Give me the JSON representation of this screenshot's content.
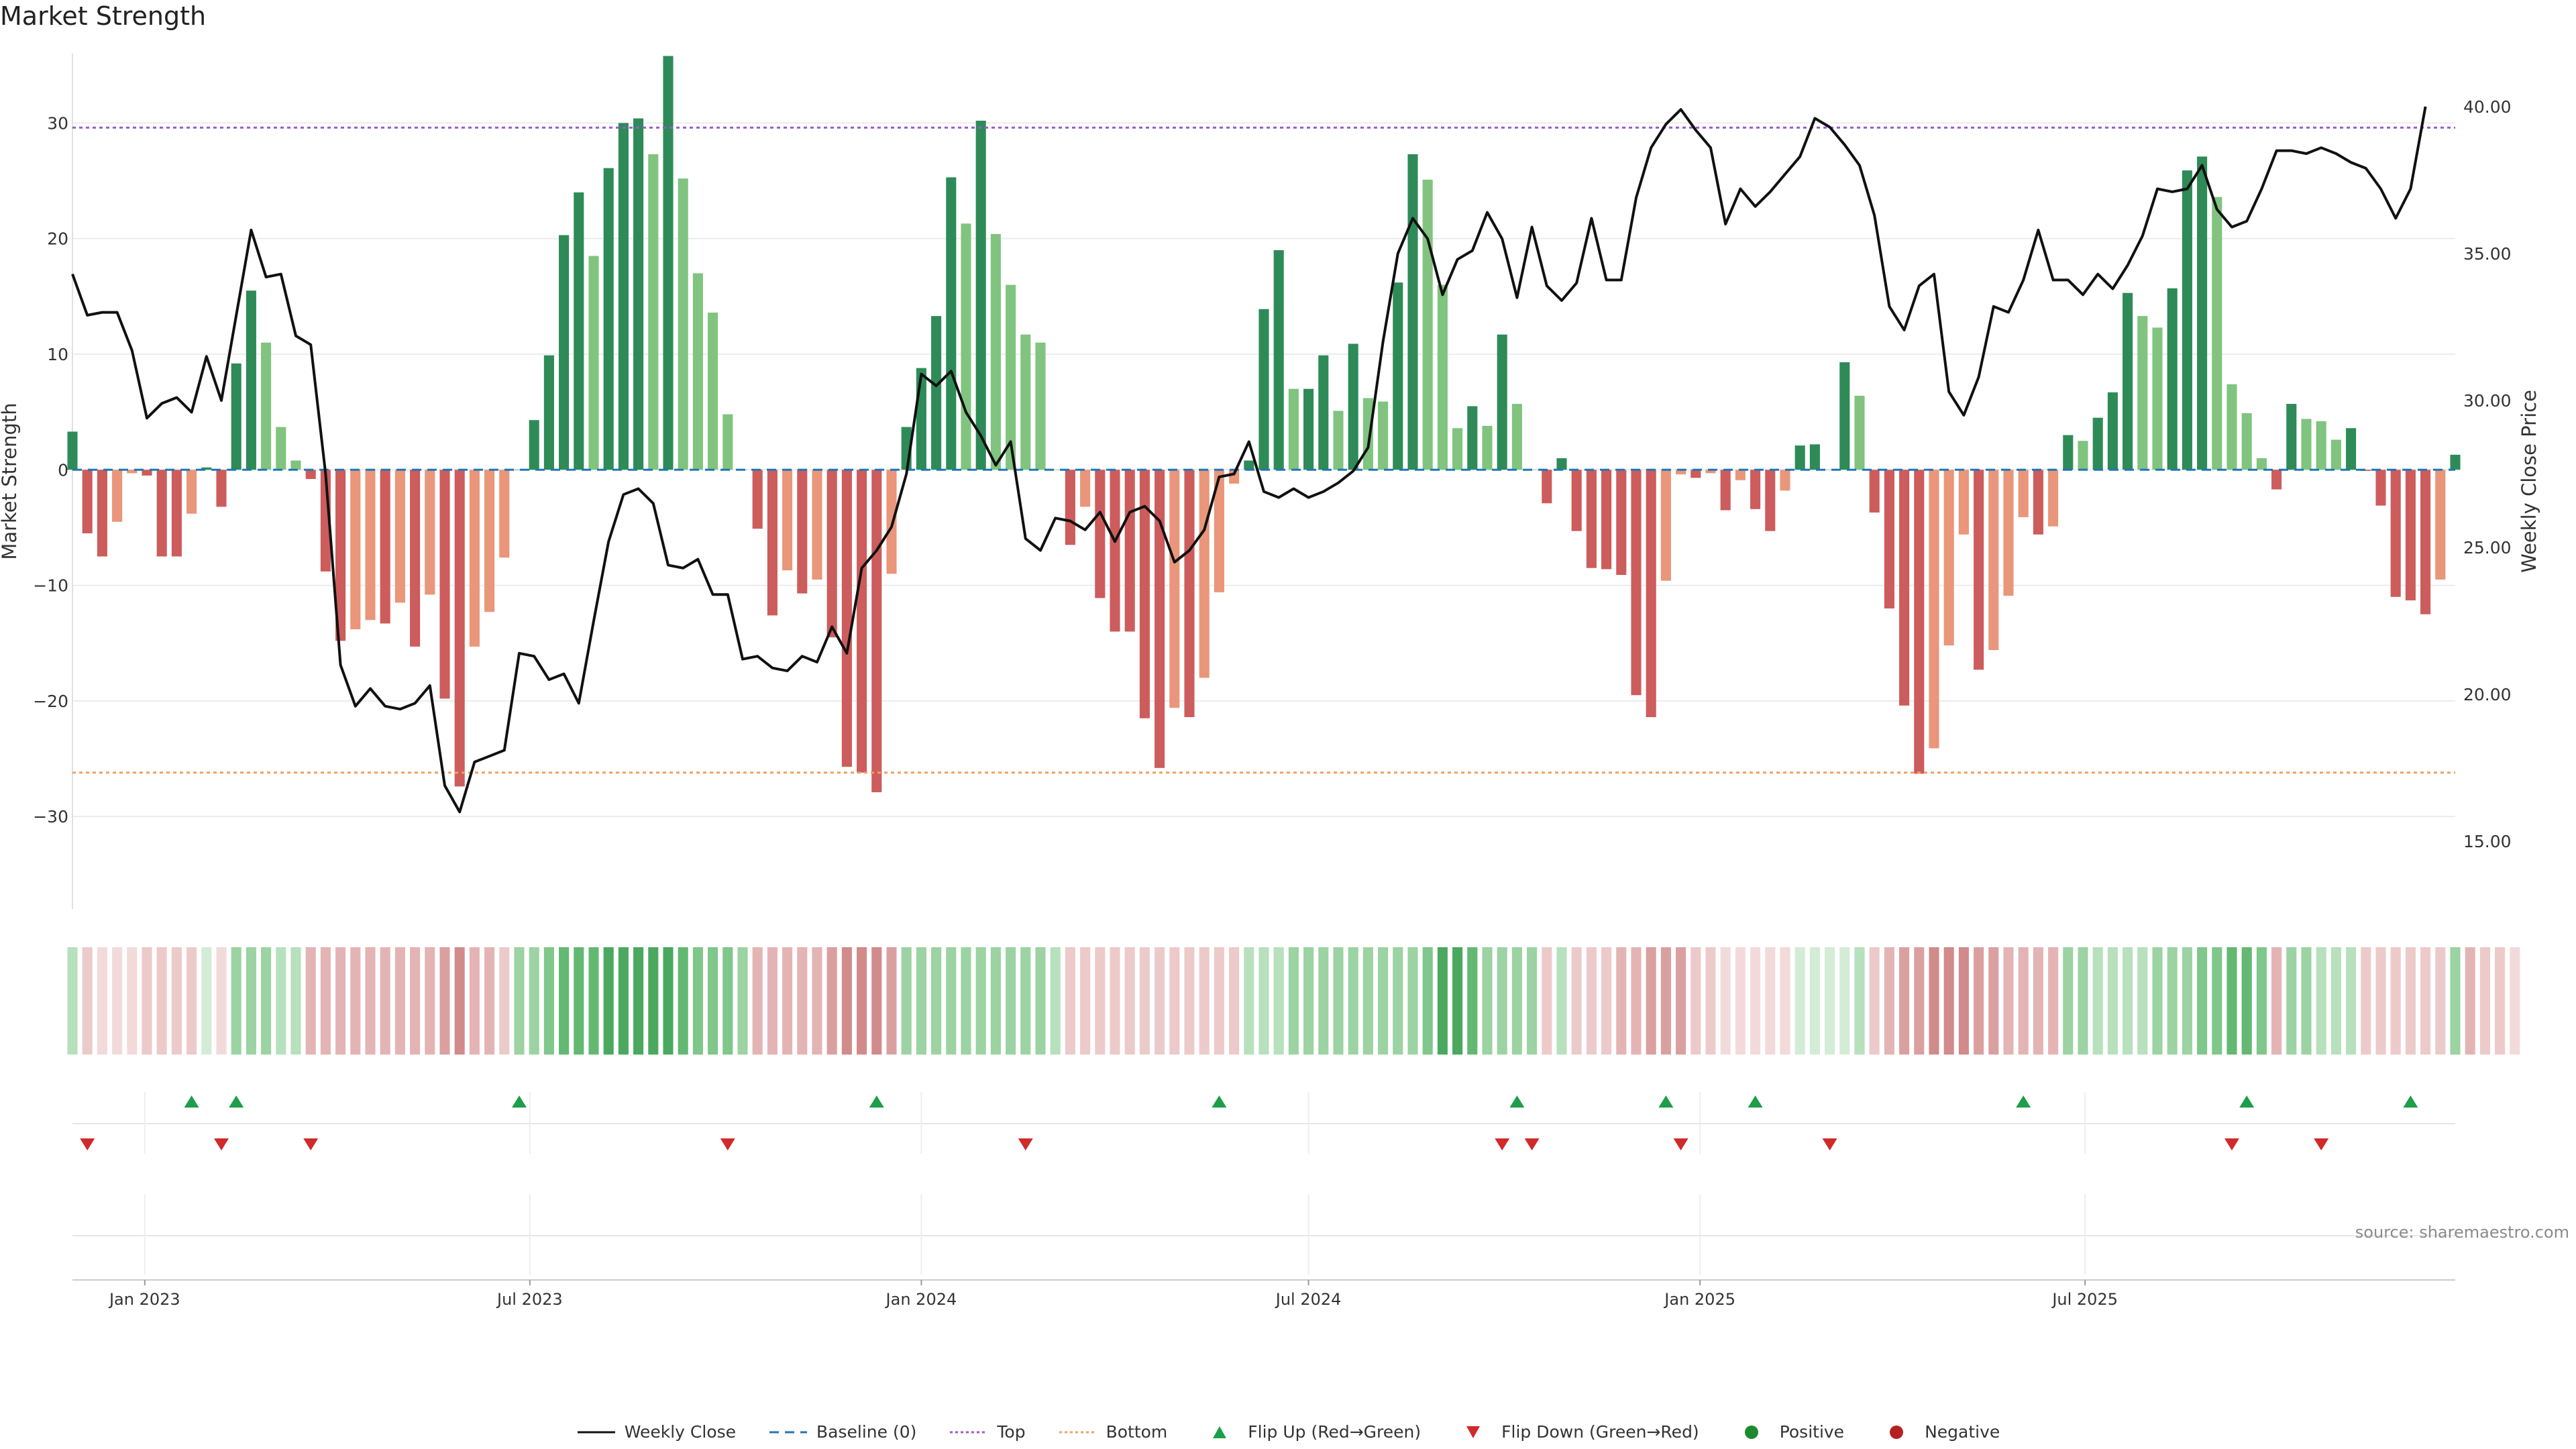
{
  "title": "Market Strength",
  "source": "source: sharemaestro.com",
  "colors": {
    "pos_strong": "#2e8b57",
    "pos_light": "#80c47f",
    "neg_strong": "#cd5c5c",
    "neg_light": "#e9967a",
    "price": "#111111",
    "baseline": "#1f77b4",
    "top": "#9b59d0",
    "bottom": "#f0a060",
    "flip_up": "#1e9e4a",
    "flip_down": "#d12a2a",
    "positive_dot": "#1e8a2e",
    "negative_dot": "#b22222"
  },
  "chart_data": {
    "type": "bar+line",
    "title": "Market Strength",
    "ylabel_left": "Market Strength",
    "ylabel_right": "Weekly Close Price",
    "ylim_left": [
      -38,
      36
    ],
    "ylim_right": [
      12.7,
      41.8
    ],
    "yticks_left": [
      30,
      20,
      10,
      0,
      -10,
      -20,
      -30
    ],
    "yticks_left_labels": [
      "30",
      "20",
      "10",
      "0",
      "−10",
      "−20",
      "−30"
    ],
    "yticks_right": [
      40,
      35,
      30,
      25,
      20,
      15
    ],
    "yticks_right_labels": [
      "40.00",
      "35.00",
      "30.00",
      "25.00",
      "20.00",
      "15.00"
    ],
    "top_threshold": 29.6,
    "bottom_threshold": -26.2,
    "x_start": "2022-11-28",
    "x_step_days": 7,
    "x_ticks": [
      {
        "date": "2023-01-01",
        "label": "Jan 2023"
      },
      {
        "date": "2023-07-01",
        "label": "Jul 2023"
      },
      {
        "date": "2024-01-01",
        "label": "Jan 2024"
      },
      {
        "date": "2024-07-01",
        "label": "Jul 2024"
      },
      {
        "date": "2025-01-01",
        "label": "Jan 2025"
      },
      {
        "date": "2025-07-01",
        "label": "Jul 2025"
      }
    ],
    "strength": [
      3.3,
      -5.5,
      -7.5,
      -4.5,
      -0.3,
      -0.5,
      -7.5,
      -7.5,
      -3.8,
      0.2,
      -3.2,
      9.2,
      15.5,
      11,
      3.7,
      0.8,
      -0.8,
      -8.8,
      -14.8,
      -13.8,
      -13,
      -13.3,
      -11.5,
      -15.3,
      -10.8,
      -19.8,
      -27.4,
      -15.3,
      -12.3,
      -7.6,
      0.0,
      4.3,
      9.9,
      20.3,
      24.0,
      18.5,
      26.1,
      30.0,
      30.4,
      27.3,
      35.8,
      25.2,
      17.0,
      13.6,
      4.8,
      0.0,
      -5.1,
      -12.6,
      -8.7,
      -10.7,
      -9.5,
      -14.5,
      -25.7,
      -26.2,
      -27.9,
      -9.0,
      3.7,
      8.8,
      13.3,
      25.3,
      21.3,
      30.2,
      20.4,
      16.0,
      11.7,
      11.0,
      0.0,
      -6.5,
      -3.2,
      -11.1,
      -14.0,
      -14.0,
      -21.5,
      -25.8,
      -20.6,
      -21.4,
      -18.0,
      -10.6,
      -1.2,
      0.8,
      13.9,
      19.0,
      7.0,
      7.0,
      9.9,
      5.1,
      10.9,
      6.2,
      5.9,
      16.2,
      27.3,
      25.1,
      16.0,
      3.6,
      5.5,
      3.8,
      11.7,
      5.7,
      0.0,
      -2.9,
      1.0,
      -5.3,
      -8.5,
      -8.6,
      -9.1,
      -19.5,
      -21.4,
      -9.6,
      -0.4,
      -0.7,
      -0.3,
      -3.5,
      -0.9,
      -3.4,
      -5.3,
      -1.8,
      2.1,
      2.2,
      0.0,
      9.3,
      6.4,
      -3.7,
      -12.0,
      -20.4,
      -26.3,
      -24.1,
      -15.2,
      -5.6,
      -17.3,
      -15.6,
      -10.9,
      -4.1,
      -5.6,
      -4.9,
      3.0,
      2.5,
      4.5,
      6.7,
      15.3,
      13.3,
      12.3,
      15.7,
      25.9,
      27.1,
      23.6,
      7.4,
      4.9,
      1.0,
      -1.7,
      5.7,
      4.4,
      4.2,
      2.6,
      3.6,
      -0.1,
      -3.1,
      -11.0,
      -11.3,
      -12.5,
      -9.5,
      1.3
    ],
    "close": [
      34.3,
      32.9,
      33.0,
      33.0,
      31.7,
      29.4,
      29.9,
      30.1,
      29.6,
      31.5,
      30.0,
      32.9,
      35.8,
      34.2,
      34.3,
      32.2,
      31.9,
      27.5,
      21.0,
      19.6,
      20.2,
      19.6,
      19.5,
      19.7,
      20.3,
      16.9,
      16.0,
      17.7,
      17.9,
      18.1,
      21.4,
      21.3,
      20.5,
      20.7,
      19.7,
      22.5,
      25.2,
      26.8,
      27.0,
      26.5,
      24.4,
      24.3,
      24.6,
      23.4,
      23.4,
      21.2,
      21.3,
      20.9,
      20.8,
      21.3,
      21.1,
      22.3,
      21.4,
      24.3,
      24.9,
      25.7,
      27.5,
      30.9,
      30.5,
      31.0,
      29.6,
      28.8,
      27.8,
      28.6,
      25.3,
      24.9,
      26.0,
      25.9,
      25.6,
      26.2,
      25.2,
      26.2,
      26.4,
      25.9,
      24.5,
      24.9,
      25.6,
      27.4,
      27.5,
      28.6,
      26.9,
      26.7,
      27.0,
      26.7,
      26.9,
      27.2,
      27.6,
      28.4,
      32.0,
      35.0,
      36.2,
      35.5,
      33.6,
      34.8,
      35.1,
      36.4,
      35.5,
      33.5,
      35.9,
      33.9,
      33.4,
      34.0,
      36.2,
      34.1,
      34.1,
      36.9,
      38.6,
      39.4,
      39.9,
      39.2,
      38.6,
      36.0,
      37.2,
      36.6,
      37.1,
      37.7,
      38.3,
      39.6,
      39.3,
      38.7,
      38.0,
      36.3,
      33.2,
      32.4,
      33.9,
      34.3,
      30.3,
      29.5,
      30.8,
      33.2,
      33.0,
      34.1,
      35.8,
      34.1,
      34.1,
      33.6,
      34.3,
      33.8,
      34.6,
      35.6,
      37.2,
      37.1,
      37.2,
      38.0,
      36.5,
      35.9,
      36.1,
      37.2,
      38.5,
      38.5,
      38.4,
      38.6,
      38.4,
      38.1,
      37.9,
      37.2,
      36.2,
      37.2,
      40.0
    ],
    "band_color_levels": [
      2,
      2,
      1,
      1,
      1,
      2,
      2,
      2,
      2,
      1,
      1,
      3,
      3,
      3,
      2,
      2,
      3,
      3,
      3,
      3,
      3,
      3,
      3,
      3,
      3,
      4,
      5,
      3,
      3,
      2,
      3,
      3,
      4,
      5,
      5,
      5,
      6,
      6,
      6,
      6,
      6,
      5,
      4,
      4,
      4,
      3,
      3,
      3,
      3,
      3,
      3,
      4,
      5,
      5,
      5,
      4,
      3,
      3,
      3,
      3,
      3,
      3,
      3,
      3,
      3,
      3,
      2,
      2,
      2,
      2,
      2,
      2,
      2,
      2,
      2,
      2,
      2,
      2,
      2,
      2,
      2,
      2,
      3,
      3,
      3,
      3,
      3,
      3,
      3,
      3,
      3,
      4,
      6,
      6,
      5,
      3,
      3,
      3,
      3,
      2,
      2,
      2,
      2,
      2,
      3,
      3,
      4,
      4,
      4,
      2,
      2,
      1,
      1,
      1,
      1,
      1,
      1,
      1,
      1,
      1,
      2,
      2,
      3,
      4,
      4,
      5,
      5,
      5,
      4,
      4,
      3,
      3,
      3,
      3,
      3,
      3,
      2,
      2,
      2,
      2,
      3,
      3,
      3,
      4,
      4,
      5,
      5,
      4,
      3,
      3,
      3,
      2,
      2,
      2,
      2,
      2,
      2,
      2,
      2,
      2,
      3,
      3,
      2,
      2,
      1
    ],
    "flip_up_weeks": [
      8,
      11,
      30,
      54,
      77,
      97,
      107,
      113,
      131,
      146,
      157
    ],
    "flip_down_weeks": [
      1,
      10,
      16,
      44,
      64,
      96,
      98,
      108,
      118,
      145,
      151
    ],
    "legend": [
      {
        "label": "Weekly Close",
        "symbol": "line"
      },
      {
        "label": "Baseline (0)",
        "symbol": "dash"
      },
      {
        "label": "Top",
        "symbol": "dot-purple"
      },
      {
        "label": "Bottom",
        "symbol": "dot-orange"
      },
      {
        "label": "Flip Up (Red→Green)",
        "symbol": "tri-up"
      },
      {
        "label": "Flip Down (Green→Red)",
        "symbol": "tri-down"
      },
      {
        "label": "Positive",
        "symbol": "dot-green"
      },
      {
        "label": "Negative",
        "symbol": "dot-red"
      }
    ]
  }
}
